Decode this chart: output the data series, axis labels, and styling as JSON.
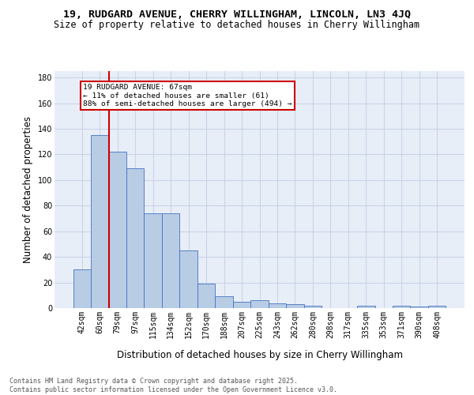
{
  "title_line1": "19, RUDGARD AVENUE, CHERRY WILLINGHAM, LINCOLN, LN3 4JQ",
  "title_line2": "Size of property relative to detached houses in Cherry Willingham",
  "xlabel": "Distribution of detached houses by size in Cherry Willingham",
  "ylabel": "Number of detached properties",
  "categories": [
    "42sqm",
    "60sqm",
    "79sqm",
    "97sqm",
    "115sqm",
    "134sqm",
    "152sqm",
    "170sqm",
    "188sqm",
    "207sqm",
    "225sqm",
    "243sqm",
    "262sqm",
    "280sqm",
    "298sqm",
    "317sqm",
    "335sqm",
    "353sqm",
    "371sqm",
    "390sqm",
    "408sqm"
  ],
  "values": [
    30,
    135,
    122,
    109,
    74,
    74,
    45,
    19,
    9,
    5,
    6,
    4,
    3,
    2,
    0,
    0,
    2,
    0,
    2,
    1,
    2
  ],
  "bar_color": "#b8cce4",
  "bar_edge_color": "#4472c4",
  "grid_color": "#c8d4e8",
  "background_color": "#e8eef8",
  "annotation_text": "19 RUDGARD AVENUE: 67sqm\n← 11% of detached houses are smaller (61)\n88% of semi-detached houses are larger (494) →",
  "annotation_box_color": "#ffffff",
  "annotation_box_edge": "#cc0000",
  "vline_color": "#cc0000",
  "ylim": [
    0,
    185
  ],
  "yticks": [
    0,
    20,
    40,
    60,
    80,
    100,
    120,
    140,
    160,
    180
  ],
  "footer": "Contains HM Land Registry data © Crown copyright and database right 2025.\nContains public sector information licensed under the Open Government Licence v3.0.",
  "title_fontsize": 9.5,
  "subtitle_fontsize": 8.5,
  "axis_label_fontsize": 8.5,
  "tick_fontsize": 7,
  "footer_fontsize": 6.0
}
